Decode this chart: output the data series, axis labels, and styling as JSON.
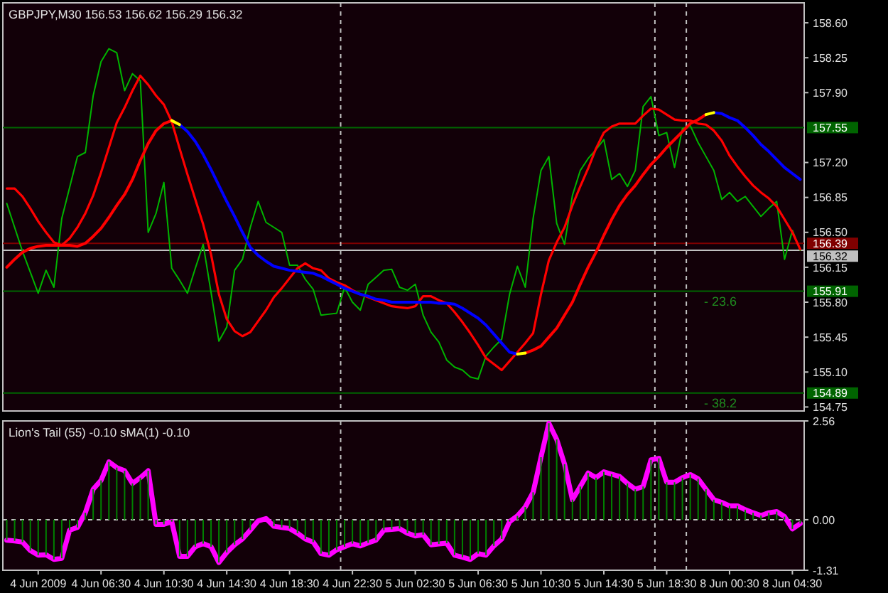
{
  "chart_data": [
    {
      "type": "line",
      "title": "GBPJPY,M30  156.53 156.62 156.29 156.32",
      "tick_labels": "y",
      "categories": [
        null,
        null,
        null,
        null,
        null,
        null,
        null,
        null,
        null,
        null,
        null,
        null,
        null,
        null,
        null,
        null,
        null,
        null,
        null,
        null,
        null,
        null,
        null,
        null,
        null,
        null,
        null,
        null,
        null,
        null,
        null,
        null,
        null,
        null,
        null,
        null,
        null,
        null,
        null,
        null,
        null,
        null,
        null,
        null,
        null,
        null,
        null,
        null,
        null,
        null,
        null,
        null,
        null,
        null,
        null,
        null,
        null,
        null,
        null,
        null,
        null,
        null,
        null,
        null,
        null,
        null,
        null,
        null,
        null,
        null,
        null,
        null,
        null,
        null,
        null,
        null,
        null,
        null,
        null,
        null,
        null,
        null,
        null,
        null,
        null,
        null,
        null,
        null,
        null,
        null,
        null,
        null,
        null,
        null,
        null,
        null,
        null,
        null,
        null,
        null,
        null,
        null
      ],
      "ylim": [
        154.71,
        158.8
      ],
      "yticks": [
        {
          "value": 158.6,
          "label": "158.60"
        },
        158.25,
        {
          "value": 157.9,
          "label": "157.90"
        },
        {
          "value": 157.2,
          "label": "157.20"
        },
        156.85,
        {
          "value": 156.5,
          "label": "156.50"
        },
        156.15,
        {
          "value": 155.8,
          "label": "155.80"
        },
        155.45,
        {
          "value": 155.1,
          "label": "155.10"
        },
        154.75
      ],
      "series": [
        {
          "color": "#00b400",
          "values": [
            156.79,
            156.55,
            156.31,
            156.1,
            155.89,
            156.12,
            155.95,
            156.64,
            156.95,
            157.26,
            157.3,
            157.87,
            158.21,
            158.34,
            158.3,
            157.92,
            158.09,
            158.02,
            156.5,
            156.69,
            157,
            156.14,
            156.02,
            155.89,
            156.14,
            156.38,
            155.9,
            155.41,
            155.55,
            156.12,
            156.23,
            156.55,
            156.81,
            156.6,
            156.55,
            156.5,
            156.17,
            156.17,
            156.03,
            155.93,
            155.67,
            155.68,
            155.69,
            155.95,
            155.8,
            155.72,
            155.98,
            156.05,
            156.12,
            156.13,
            155.95,
            155.92,
            155.98,
            155.67,
            155.5,
            155.4,
            155.22,
            155.15,
            155.12,
            155.05,
            155.03,
            155.26,
            155.35,
            155.43,
            155.88,
            156.16,
            155.95,
            156.64,
            157.12,
            157.26,
            156.59,
            156.38,
            156.87,
            157.12,
            157.24,
            157.33,
            157.43,
            157.03,
            157.09,
            156.96,
            157.12,
            157.76,
            157.86,
            157.47,
            157.5,
            157.15,
            157.54,
            157.57,
            157.4,
            157.26,
            157.12,
            156.83,
            156.9,
            156.81,
            156.86,
            156.76,
            156.66,
            156.74,
            156.81,
            156.23,
            156.52,
            156.32
          ]
        },
        {
          "color": "#ff0000",
          "values": [
            156.94,
            156.94,
            156.86,
            156.74,
            156.61,
            156.5,
            156.4,
            156.37,
            156.44,
            156.55,
            156.69,
            156.87,
            157.1,
            157.35,
            157.6,
            157.75,
            157.92,
            158.07,
            157.98,
            157.87,
            157.78,
            157.61,
            157.34,
            157.08,
            156.83,
            156.58,
            156.28,
            155.88,
            155.63,
            155.51,
            155.46,
            155.5,
            155.61,
            155.72,
            155.85,
            155.94,
            156.04,
            156.14,
            156.19,
            156.14,
            156.12,
            156.04,
            156,
            155.97,
            155.92,
            155.88,
            155.85,
            155.82,
            155.79,
            155.76,
            155.75,
            155.74,
            155.76,
            155.86,
            155.86,
            155.82,
            155.79,
            155.7,
            155.6,
            155.49,
            155.37,
            155.24,
            155.18,
            155.12,
            155.21,
            155.3,
            155.39,
            155.49,
            155.88,
            156.22,
            156.4,
            156.55,
            156.77,
            156.96,
            157.14,
            157.34,
            157.5,
            157.56,
            157.59,
            157.59,
            157.59,
            157.67,
            157.74,
            157.73,
            157.68,
            157.63,
            157.62,
            157.62,
            157.59,
            157.58,
            157.52,
            157.42,
            157.27,
            157.16,
            157.06,
            156.97,
            156.9,
            156.84,
            156.76,
            156.63,
            156.5,
            156.33
          ]
        },
        {
          "color": "#ff0000",
          "values": [
            156.15,
            156.23,
            156.3,
            156.34,
            156.36,
            156.37,
            156.37,
            156.37,
            156.37,
            156.36,
            156.39,
            156.46,
            156.54,
            156.65,
            156.77,
            156.88,
            157.03,
            157.22,
            157.39,
            157.52,
            157.59,
            157.62,
            null,
            null,
            null,
            null,
            null,
            null,
            null,
            null,
            null,
            null,
            null,
            null,
            null,
            null,
            null,
            null,
            null,
            null,
            null,
            null,
            null,
            null,
            null,
            null,
            null,
            null,
            null,
            null,
            null,
            null,
            null,
            null,
            null,
            null,
            null,
            null,
            null,
            null,
            null,
            null,
            null,
            null,
            null,
            null,
            155.29,
            155.32,
            155.36,
            155.45,
            155.54,
            155.67,
            155.8,
            155.98,
            156.15,
            156.3,
            156.47,
            156.63,
            156.77,
            156.88,
            156.97,
            157.08,
            157.18,
            157.26,
            157.35,
            157.43,
            157.51,
            157.59,
            157.63,
            157.68,
            null,
            null,
            null,
            null,
            null,
            null,
            null,
            null,
            null,
            null,
            null,
            null
          ]
        },
        {
          "color": "#0000ff",
          "values": [
            null,
            null,
            null,
            null,
            null,
            null,
            null,
            null,
            null,
            null,
            null,
            null,
            null,
            null,
            null,
            null,
            null,
            null,
            null,
            null,
            null,
            null,
            157.58,
            157.51,
            157.41,
            157.28,
            157.13,
            156.97,
            156.81,
            156.66,
            156.5,
            156.35,
            156.27,
            156.21,
            156.16,
            156.14,
            156.12,
            156.11,
            156.1,
            156.09,
            156.06,
            156.02,
            155.98,
            155.94,
            155.91,
            155.88,
            155.86,
            155.83,
            155.82,
            155.8,
            155.8,
            155.8,
            155.8,
            155.8,
            155.8,
            155.79,
            155.79,
            155.78,
            155.74,
            155.69,
            155.64,
            155.57,
            155.48,
            155.39,
            155.3,
            155.28,
            null,
            null,
            null,
            null,
            null,
            null,
            null,
            null,
            null,
            null,
            null,
            null,
            null,
            null,
            null,
            null,
            null,
            null,
            null,
            null,
            null,
            null,
            null,
            null,
            157.7,
            157.69,
            157.65,
            157.62,
            157.55,
            157.47,
            157.38,
            157.31,
            157.23,
            157.15,
            157.09,
            157.03
          ]
        },
        {
          "color": "#ffff00",
          "values": [
            null,
            null,
            null,
            null,
            null,
            null,
            null,
            null,
            null,
            null,
            null,
            null,
            null,
            null,
            null,
            null,
            null,
            null,
            null,
            null,
            null,
            157.62,
            157.58,
            null,
            null,
            null,
            null,
            null,
            null,
            null,
            null,
            null,
            null,
            null,
            null,
            null,
            null,
            null,
            null,
            null,
            null,
            null,
            null,
            null,
            null,
            null,
            null,
            null,
            null,
            null,
            null,
            null,
            null,
            null,
            null,
            null,
            null,
            null,
            null,
            null,
            null,
            null,
            null,
            null,
            null,
            155.28,
            155.29,
            null,
            null,
            null,
            null,
            null,
            null,
            null,
            null,
            null,
            null,
            null,
            null,
            null,
            null,
            null,
            null,
            null,
            null,
            null,
            null,
            null,
            null,
            157.68,
            157.7,
            null,
            null,
            null,
            null,
            null,
            null,
            null,
            null,
            null,
            null,
            null
          ]
        }
      ],
      "ref_lines": [
        {
          "axis": "y",
          "value": 157.55,
          "label": "157.55",
          "color": "#006400"
        },
        {
          "axis": "y",
          "value": 155.91,
          "label": "155.91",
          "color": "#006400"
        },
        {
          "axis": "y",
          "value": 154.89,
          "label": "154.89",
          "color": "#006400"
        },
        {
          "axis": "y",
          "value": 156.39,
          "label": "156.39",
          "color": "#800000"
        },
        {
          "axis": "y",
          "value": 156.32,
          "label": "156.32",
          "color": "#c0c0c0"
        }
      ],
      "annotations": [
        {
          "text": "- 23.6",
          "y": 155.91
        },
        {
          "text": "- 38.2",
          "y": 154.89
        }
      ],
      "grid": false
    },
    {
      "type": "line",
      "title": "Lion's Tail (55) -0.10  sMA(1) -0.10",
      "categories": [
        null,
        null,
        null,
        null,
        "4 Jun 2009",
        null,
        null,
        null,
        null,
        null,
        null,
        null,
        "4 Jun 06:30",
        null,
        null,
        null,
        null,
        null,
        null,
        null,
        "4 Jun 10:30",
        null,
        null,
        null,
        null,
        null,
        null,
        null,
        "4 Jun 14:30",
        null,
        null,
        null,
        null,
        null,
        null,
        null,
        "4 Jun 18:30",
        null,
        null,
        null,
        null,
        null,
        null,
        null,
        "4 Jun 22:30",
        null,
        null,
        null,
        null,
        null,
        null,
        null,
        "5 Jun 02:30",
        null,
        null,
        null,
        null,
        null,
        null,
        null,
        "5 Jun 06:30",
        null,
        null,
        null,
        null,
        null,
        null,
        null,
        "5 Jun 10:30",
        null,
        null,
        null,
        null,
        null,
        null,
        null,
        "5 Jun 14:30",
        null,
        null,
        null,
        null,
        null,
        null,
        null,
        "5 Jun 18:30",
        null,
        null,
        null,
        null,
        null,
        null,
        null,
        "8 Jun 00:30",
        null,
        null,
        null,
        null,
        null,
        null,
        null,
        "8 Jun 04:30",
        null
      ],
      "ylim": [
        -1.31,
        2.56
      ],
      "yticks": [
        2.56,
        {
          "value": 0,
          "label": "0.00"
        },
        -1.31
      ],
      "series": [
        {
          "type": "bar",
          "color": "#008000",
          "values": [
            -0.53,
            -0.55,
            -0.58,
            -0.8,
            -0.92,
            -0.91,
            -1.03,
            -1,
            -0.27,
            -0.2,
            0.18,
            0.79,
            1.02,
            1.5,
            1.35,
            1.27,
            0.94,
            1.09,
            1.27,
            -0.12,
            -0.12,
            -0.05,
            -0.95,
            -0.95,
            -0.7,
            -0.62,
            -0.7,
            -1.11,
            -0.85,
            -0.65,
            -0.5,
            -0.27,
            null,
            null,
            -0.17,
            -0.2,
            -0.23,
            -0.35,
            -0.5,
            -0.58,
            -0.88,
            -0.92,
            -0.78,
            -0.7,
            -0.62,
            -0.68,
            -0.6,
            -0.53,
            -0.27,
            -0.25,
            -0.23,
            -0.35,
            -0.42,
            -0.39,
            -0.65,
            -0.63,
            -0.61,
            -0.92,
            -0.97,
            -1.03,
            -0.88,
            -0.92,
            -0.68,
            -0.5,
            -0.05,
            0.1,
            0.33,
            0.71,
            1.62,
            2.5,
            2.08,
            1.44,
            0.52,
            0.86,
            1.21,
            1.09,
            1.24,
            1.18,
            1.12,
            0.94,
            0.79,
            0.86,
            1.55,
            1.59,
            0.97,
            0.97,
            1.09,
            1.17,
            1.06,
            0.79,
            0.52,
            0.45,
            0.36,
            0.36,
            0.26,
            0.18,
            0.11,
            0.18,
            0.21,
            0.08,
            -0.24,
            -0.1
          ]
        },
        {
          "color": "#ff00ff",
          "values": [
            -0.53,
            -0.55,
            -0.58,
            -0.8,
            -0.92,
            -0.91,
            -1.03,
            -1,
            -0.27,
            -0.2,
            0.18,
            0.79,
            1.02,
            1.5,
            1.35,
            1.27,
            0.94,
            1.09,
            1.27,
            -0.12,
            -0.12,
            -0.05,
            -0.95,
            -0.95,
            -0.7,
            -0.62,
            -0.7,
            -1.11,
            -0.85,
            -0.65,
            -0.5,
            -0.27,
            -0.03,
            0.03,
            -0.17,
            -0.2,
            -0.23,
            -0.35,
            -0.5,
            -0.58,
            -0.88,
            -0.92,
            -0.78,
            -0.7,
            -0.62,
            -0.68,
            -0.6,
            -0.53,
            -0.27,
            -0.25,
            -0.23,
            -0.35,
            -0.42,
            -0.39,
            -0.65,
            -0.63,
            -0.61,
            -0.92,
            -0.97,
            -1.03,
            -0.88,
            -0.92,
            -0.68,
            -0.5,
            -0.05,
            0.1,
            0.33,
            0.71,
            1.62,
            2.5,
            2.08,
            1.44,
            0.52,
            0.86,
            1.21,
            1.09,
            1.24,
            1.18,
            1.12,
            0.94,
            0.79,
            0.86,
            1.55,
            1.59,
            0.97,
            0.97,
            1.09,
            1.17,
            1.06,
            0.79,
            0.52,
            0.45,
            0.36,
            0.36,
            0.26,
            0.18,
            0.11,
            0.18,
            0.21,
            0.08,
            -0.24,
            -0.1
          ]
        }
      ],
      "ref_lines": [
        {
          "axis": "y",
          "value": 0,
          "color": "#c0c0c0",
          "line_style": "dashed"
        }
      ],
      "grid": false
    }
  ]
}
